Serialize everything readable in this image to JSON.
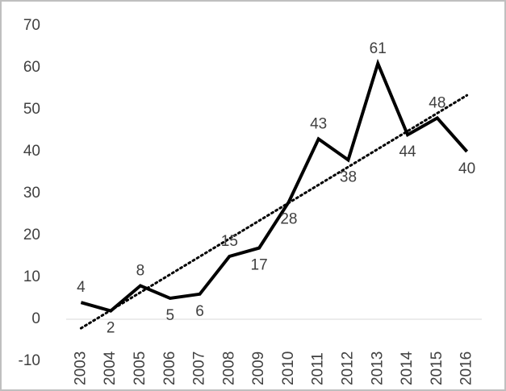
{
  "chart_data": {
    "type": "line",
    "categories": [
      "2003",
      "2004",
      "2005",
      "2006",
      "2007",
      "2008",
      "2009",
      "2010",
      "2011",
      "2012",
      "2013",
      "2014",
      "2015",
      "2016"
    ],
    "series": [
      {
        "color": "#000000",
        "values": [
          4,
          2,
          8,
          5,
          6,
          15,
          17,
          28,
          43,
          38,
          61,
          44,
          48,
          40
        ]
      }
    ],
    "trendline": "linear",
    "ylim": [
      -10,
      70
    ],
    "yticks": [
      -10,
      0,
      10,
      20,
      30,
      40,
      50,
      60,
      70
    ],
    "grid": false
  }
}
